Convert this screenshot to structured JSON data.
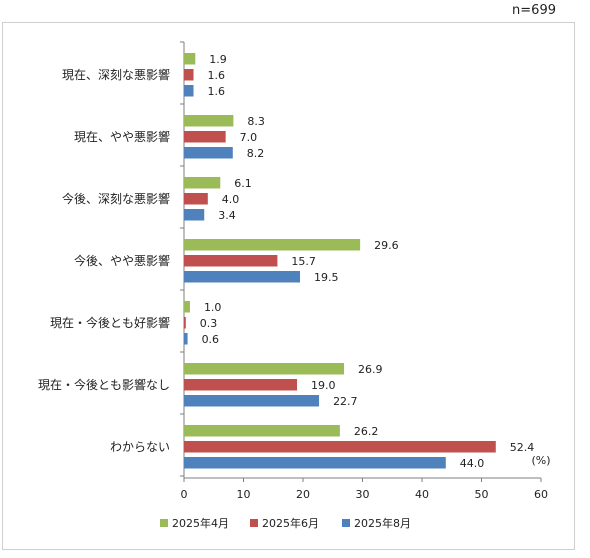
{
  "sample_size": "n=699",
  "chart_data": {
    "type": "bar",
    "orientation": "horizontal",
    "categories": [
      "現在、深刻な悪影響",
      "現在、やや悪影響",
      "今後、深刻な悪影響",
      "今後、やや悪影響",
      "現在・今後とも好影響",
      "現在・今後とも影響なし",
      "わからない"
    ],
    "series": [
      {
        "name": "2025年4月",
        "color": "#9bbb59",
        "values": [
          1.9,
          8.3,
          6.1,
          29.6,
          1.0,
          26.9,
          26.2
        ]
      },
      {
        "name": "2025年6月",
        "color": "#c0504d",
        "values": [
          1.6,
          7.0,
          4.0,
          15.7,
          0.3,
          19.0,
          52.4
        ]
      },
      {
        "name": "2025年8月",
        "color": "#4f81bd",
        "values": [
          1.6,
          8.2,
          3.4,
          19.5,
          0.6,
          22.7,
          44.0
        ]
      }
    ],
    "xlim": [
      0,
      60
    ],
    "xticks": [
      "0",
      "10",
      "20",
      "30",
      "40",
      "50",
      "60"
    ],
    "unit_label": "(%)",
    "grid": false,
    "legend_position": "bottom"
  }
}
